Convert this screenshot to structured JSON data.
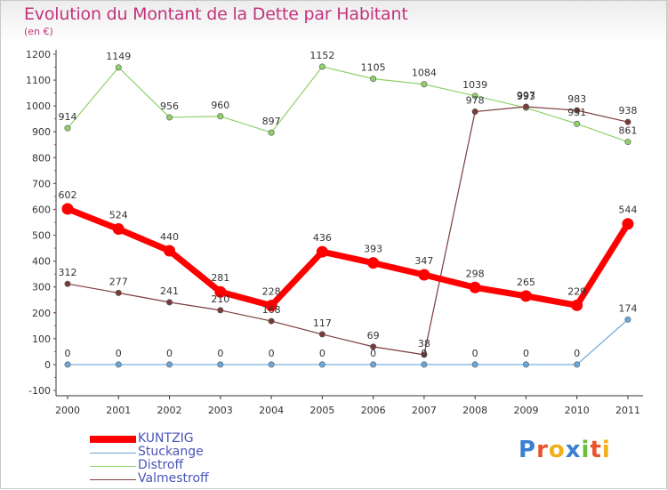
{
  "title": "Evolution du Montant de la Dette par Habitant",
  "unit": "(en €)",
  "chart_data": {
    "type": "line",
    "x": [
      2000,
      2001,
      2002,
      2003,
      2004,
      2005,
      2006,
      2007,
      2008,
      2009,
      2010,
      2011
    ],
    "ylim": [
      -100,
      1200
    ],
    "yticks": [
      -100,
      0,
      100,
      200,
      300,
      400,
      500,
      600,
      700,
      800,
      900,
      1000,
      1100,
      1200
    ],
    "grid": false,
    "legend_position": "bottom-left",
    "series": [
      {
        "name": "Distroff",
        "color": "#8fd16b",
        "values": [
          914,
          1149,
          956,
          960,
          897,
          1152,
          1105,
          1084,
          1039,
          993,
          931,
          861
        ]
      },
      {
        "name": "Valmestroff",
        "color": "#7a3b3b",
        "values": [
          312,
          277,
          241,
          210,
          168,
          117,
          69,
          38,
          978,
          997,
          983,
          938
        ]
      },
      {
        "name": "Stuckange",
        "color": "#6aa7d8",
        "values": [
          0,
          0,
          0,
          0,
          0,
          0,
          0,
          0,
          0,
          0,
          0,
          174
        ]
      },
      {
        "name": "KUNTZIG",
        "color": "#ff0000",
        "values": [
          602,
          524,
          440,
          281,
          228,
          436,
          393,
          347,
          298,
          265,
          229,
          544
        ]
      }
    ]
  },
  "legend": {
    "items": [
      {
        "name": "KUNTZIG",
        "color": "#ff0000"
      },
      {
        "name": "Stuckange",
        "color": "#6aa7d8"
      },
      {
        "name": "Distroff",
        "color": "#8fd16b"
      },
      {
        "name": "Valmestroff",
        "color": "#7a3b3b"
      }
    ]
  },
  "logo": {
    "text": "Proxiti"
  }
}
